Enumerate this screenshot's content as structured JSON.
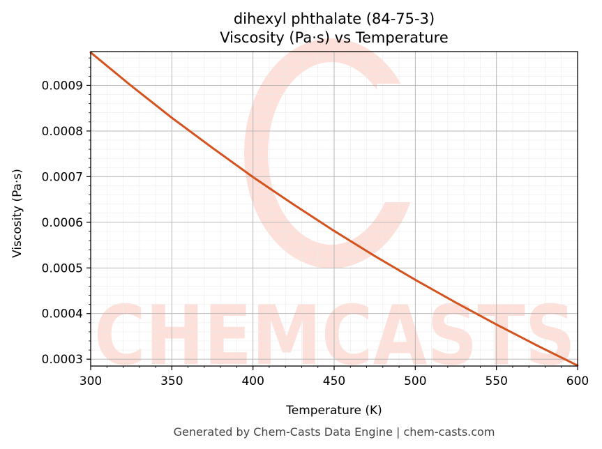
{
  "chart_data": {
    "type": "line",
    "title": "dihexyl phthalate (84-75-3)",
    "subtitle": "Viscosity (Pa·s) vs Temperature",
    "xlabel": "Temperature (K)",
    "ylabel": "Viscosity (Pa·s)",
    "xlim": [
      300,
      600
    ],
    "ylim": [
      0.000285,
      0.000974
    ],
    "xticks": [
      "300",
      "350",
      "400",
      "450",
      "500",
      "550",
      "600"
    ],
    "yticks": [
      "0.0003",
      "0.0004",
      "0.0005",
      "0.0006",
      "0.0007",
      "0.0008",
      "0.0009"
    ],
    "grid": true,
    "series": [
      {
        "color": "#d4521e",
        "x": [
          300,
          325,
          350,
          375,
          400,
          425,
          450,
          475,
          500,
          525,
          550,
          575,
          600
        ],
        "y": [
          0.000972,
          0.000899,
          0.000829,
          0.000763,
          0.000699,
          0.000639,
          0.000581,
          0.000526,
          0.000474,
          0.000424,
          0.000376,
          0.00033,
          0.000286
        ]
      }
    ]
  },
  "watermark": {
    "text": "CHEMCASTS",
    "color": "#fde0da"
  },
  "footer": "Generated by Chem-Casts Data Engine | chem-casts.com"
}
